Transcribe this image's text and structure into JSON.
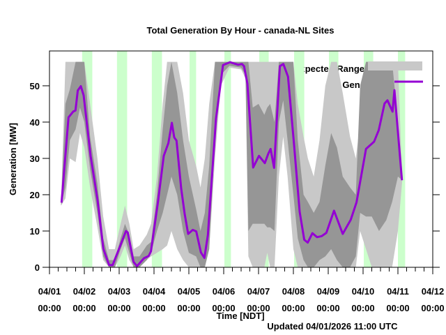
{
  "chart_data": {
    "type": "line",
    "title": "Total Generation By Hour - canada-NL Sites",
    "xlabel": "Time [NDT]",
    "ylabel": "Generation [MW]",
    "footer": "Updated 04/01/2026 11:00 UTC",
    "x_unit": "hours since 04/01 00:00",
    "xlim": [
      0,
      264
    ],
    "ylim": [
      0,
      59.6
    ],
    "yticks": [
      0,
      10,
      20,
      30,
      40,
      50
    ],
    "xtick_labels": [
      {
        "date": "04/01",
        "time": "00:00"
      },
      {
        "date": "04/02",
        "time": "00:00"
      },
      {
        "date": "04/03",
        "time": "00:00"
      },
      {
        "date": "04/04",
        "time": "00:00"
      },
      {
        "date": "04/05",
        "time": "00:00"
      },
      {
        "date": "04/06",
        "time": "00:00"
      },
      {
        "date": "04/07",
        "time": "00:00"
      },
      {
        "date": "04/08",
        "time": "00:00"
      },
      {
        "date": "04/09",
        "time": "00:00"
      },
      {
        "date": "04/10",
        "time": "00:00"
      },
      {
        "date": "04/11",
        "time": "00:00"
      },
      {
        "date": "04/12",
        "time": "00:00"
      }
    ],
    "legend": {
      "position": "top-right",
      "entries": [
        "Expected Range",
        "Generation"
      ]
    },
    "colors": {
      "generation": "#9400d3",
      "outer_range": "#c8c8c8",
      "inner_range": "#969696",
      "night": "#ccffcc"
    },
    "night_bands_hours": [
      [
        22.5,
        29.5
      ],
      [
        46.5,
        53.5
      ],
      [
        70.5,
        77.5
      ],
      [
        96.5,
        101
      ],
      [
        120.5,
        125
      ],
      [
        144.5,
        151
      ],
      [
        168.5,
        175.5
      ],
      [
        192.5,
        199
      ],
      [
        216.5,
        223
      ],
      [
        240,
        245
      ]
    ],
    "expected_range": [
      [
        8,
        17,
        18,
        17,
        18
      ],
      [
        11,
        19,
        56.6,
        22,
        45
      ],
      [
        14,
        30,
        56.6,
        35,
        49
      ],
      [
        18,
        29,
        56.6,
        38,
        56.6
      ],
      [
        21,
        37,
        56.6,
        44,
        56.6
      ],
      [
        24,
        33,
        56.6,
        40,
        56.6
      ],
      [
        28,
        22,
        45,
        27,
        36
      ],
      [
        33,
        11,
        30,
        15,
        23
      ],
      [
        37,
        2,
        14,
        3,
        8
      ],
      [
        41,
        0,
        5,
        0,
        2
      ],
      [
        45,
        0,
        5,
        0,
        2
      ],
      [
        49,
        3,
        12,
        5,
        8
      ],
      [
        52,
        6,
        17,
        8,
        12
      ],
      [
        55,
        2,
        12,
        4,
        9
      ],
      [
        58,
        0,
        5,
        0,
        3
      ],
      [
        62,
        0,
        6,
        0,
        3
      ],
      [
        67,
        2,
        9,
        2,
        6
      ],
      [
        70,
        3,
        12,
        4,
        7
      ],
      [
        74,
        4,
        25,
        10,
        20
      ],
      [
        78,
        5,
        45,
        15,
        38
      ],
      [
        81,
        6,
        56.6,
        20,
        50
      ],
      [
        84,
        10,
        56.6,
        25,
        56.6
      ],
      [
        88,
        5,
        56.6,
        20,
        48
      ],
      [
        92,
        2,
        48,
        10,
        35
      ],
      [
        96,
        0,
        35,
        4,
        25
      ],
      [
        101,
        0,
        28,
        3,
        16
      ],
      [
        104,
        0,
        22,
        0,
        10
      ],
      [
        107,
        0,
        30,
        0,
        15
      ],
      [
        110,
        5,
        45,
        5,
        28
      ],
      [
        114,
        30,
        56.6,
        35,
        56.6
      ],
      [
        118,
        50,
        56.6,
        53,
        56.6
      ],
      [
        124,
        55,
        56.6,
        55.5,
        56.6
      ],
      [
        132,
        54.5,
        56.6,
        55,
        56.6
      ],
      [
        135,
        52,
        56.6,
        53,
        56.6
      ],
      [
        137,
        3,
        56.6,
        10,
        56.6
      ],
      [
        140,
        0,
        56.6,
        12,
        44
      ],
      [
        144,
        0,
        56.6,
        12,
        45
      ],
      [
        148,
        0,
        56.6,
        12,
        42
      ],
      [
        150,
        4,
        56.6,
        11,
        44
      ],
      [
        152,
        0,
        56.6,
        11,
        45
      ],
      [
        155,
        0,
        56.6,
        10,
        40
      ],
      [
        158,
        25,
        56.6,
        40,
        56.6
      ],
      [
        161,
        36,
        56.6,
        46,
        56.6
      ],
      [
        164,
        25,
        56.6,
        35,
        56.6
      ],
      [
        168,
        5,
        56.6,
        20,
        56.6
      ],
      [
        171,
        0,
        45,
        8,
        35
      ],
      [
        175,
        0,
        36,
        2,
        20
      ],
      [
        178,
        0,
        30,
        0,
        18
      ],
      [
        182,
        0,
        25,
        0,
        15
      ],
      [
        186,
        0,
        35,
        2,
        18
      ],
      [
        190,
        0,
        50,
        3,
        28
      ],
      [
        194,
        0,
        56.6,
        5,
        37
      ],
      [
        198,
        0,
        56.6,
        2,
        33
      ],
      [
        202,
        0,
        48,
        0,
        25
      ],
      [
        207,
        0,
        36,
        0,
        22
      ],
      [
        211,
        0,
        30,
        3,
        20
      ],
      [
        214,
        10,
        40,
        15,
        50
      ],
      [
        218,
        5,
        56.6,
        14,
        56.6
      ],
      [
        222,
        0,
        56.6,
        14,
        56.6
      ],
      [
        227,
        0,
        56.6,
        10,
        56.6
      ],
      [
        232,
        0,
        56.6,
        13,
        56.6
      ],
      [
        236,
        0,
        56.6,
        18,
        56.6
      ],
      [
        240,
        10,
        56.6,
        25,
        40
      ],
      [
        243,
        24,
        24,
        24,
        24
      ]
    ],
    "series": [
      {
        "name": "Generation",
        "points": [
          [
            8.3,
            17.8
          ],
          [
            13.1,
            41.3
          ],
          [
            16.3,
            42.9
          ],
          [
            17.9,
            43.2
          ],
          [
            19.5,
            48.7
          ],
          [
            21.6,
            49.9
          ],
          [
            23.5,
            47.4
          ],
          [
            28.3,
            30.7
          ],
          [
            33.1,
            18.5
          ],
          [
            37.1,
            5.1
          ],
          [
            41.1,
            0.6
          ],
          [
            43.5,
            0.6
          ],
          [
            49.1,
            6.3
          ],
          [
            52.7,
            10
          ],
          [
            53.9,
            9.6
          ],
          [
            57.9,
            1.5
          ],
          [
            60.3,
            0.3
          ],
          [
            65.1,
            2.5
          ],
          [
            68.3,
            3.1
          ],
          [
            69.9,
            4.4
          ],
          [
            74.7,
            17.9
          ],
          [
            78.7,
            30.7
          ],
          [
            81.9,
            34.2
          ],
          [
            84.3,
            39.8
          ],
          [
            85.9,
            35.8
          ],
          [
            87.5,
            34.9
          ],
          [
            90.7,
            21.7
          ],
          [
            93.1,
            14.7
          ],
          [
            95.5,
            9.2
          ],
          [
            98.7,
            10.3
          ],
          [
            101.1,
            9.9
          ],
          [
            104.3,
            4.1
          ],
          [
            106.7,
            2.6
          ],
          [
            109.1,
            8.9
          ],
          [
            114.7,
            41
          ],
          [
            119.5,
            55.7
          ],
          [
            124.3,
            56.5
          ],
          [
            130,
            55.8
          ],
          [
            132.6,
            56
          ],
          [
            134,
            55.4
          ],
          [
            136.3,
            50.6
          ],
          [
            140.3,
            27.5
          ],
          [
            144.3,
            30.7
          ],
          [
            148.3,
            28.7
          ],
          [
            150.7,
            31.3
          ],
          [
            152.3,
            32.6
          ],
          [
            154.7,
            27.4
          ],
          [
            158.7,
            55.4
          ],
          [
            161.1,
            56
          ],
          [
            164.3,
            52.5
          ],
          [
            168.3,
            34.6
          ],
          [
            172.3,
            15.3
          ],
          [
            175.5,
            7.6
          ],
          [
            177.9,
            6.8
          ],
          [
            181.1,
            9.4
          ],
          [
            184.3,
            8.3
          ],
          [
            187.5,
            8.6
          ],
          [
            190.7,
            9.5
          ],
          [
            196,
            15.6
          ],
          [
            202,
            9.2
          ],
          [
            207.5,
            13.1
          ],
          [
            211.5,
            17.9
          ],
          [
            218,
            32.6
          ],
          [
            223.6,
            34.6
          ],
          [
            226.8,
            37.8
          ],
          [
            230.8,
            45.1
          ],
          [
            232.8,
            46
          ],
          [
            236.3,
            42.9
          ],
          [
            237.6,
            48.8
          ],
          [
            242.8,
            24
          ]
        ]
      }
    ]
  }
}
